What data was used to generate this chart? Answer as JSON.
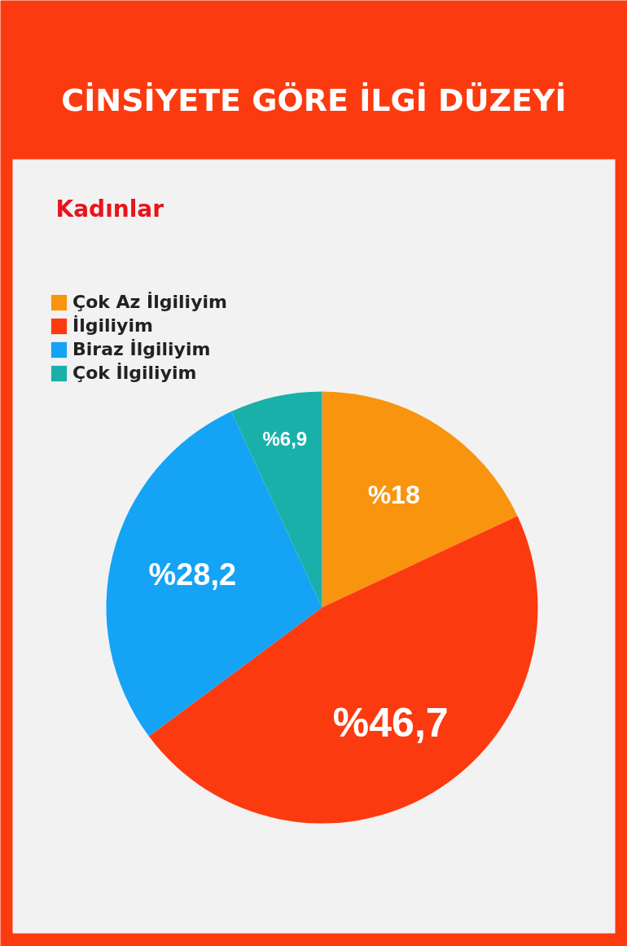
{
  "chart_data": {
    "type": "pie",
    "title": "CİNSİYETE GÖRE İLGİ DÜZEYİ",
    "subtitle": "Kadınlar",
    "categories": [
      "Çok Az İlgiliyim",
      "İlgiliyim",
      "Biraz İlgiliyim",
      "Çok İlgiliyim"
    ],
    "values": [
      18,
      46.7,
      28.2,
      6.9
    ],
    "colors": [
      "#f9940f",
      "#fc3a0f",
      "#14a3f5",
      "#1ab0aa"
    ],
    "value_labels": [
      "%18",
      "%46,7",
      "%28,2",
      "%6,9"
    ],
    "legend": "top left"
  }
}
